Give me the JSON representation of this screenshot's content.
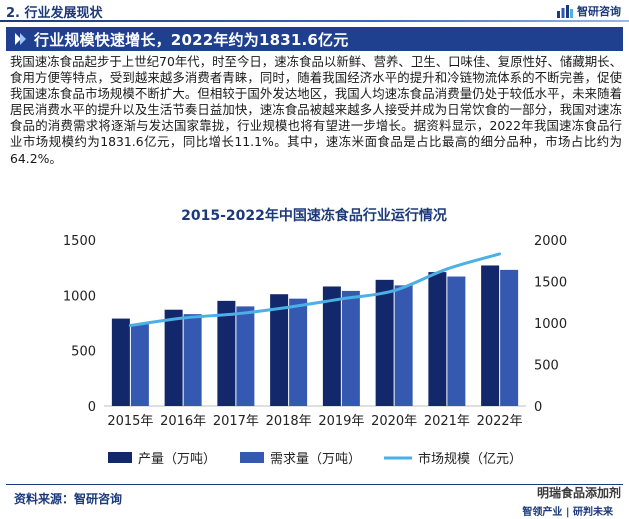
{
  "header": {
    "section": "2. 行业发展现状",
    "brand": "智研咨询"
  },
  "banner": {
    "title": "行业规模快速增长，2022年约为1831.6亿元"
  },
  "paragraph": "我国速冻食品起步于上世纪70年代，时至今日，速冻食品以新鲜、营养、卫生、口味佳、复原性好、储藏期长、食用方便等特点，受到越来越多消费者青睐，同时，随着我国经济水平的提升和冷链物流体系的不断完善，促使我国速冻食品市场规模不断扩大。但相较于国外发达地区，我国人均速冻食品消费量仍处于较低水平，未来随着居民消费水平的提升以及生活节奏日益加快，速冻食品被越来越多人接受并成为日常饮食的一部分，我国对速冻食品的消费需求将逐渐与发达国家靠拢，行业规模也将有望进一步增长。据资料显示，2022年我国速冻食品行业市场规模约为1831.6亿元，同比增长11.1%。其中，速冻米面食品是占比最高的细分品种，市场占比约为64.2%。",
  "chart_data": {
    "type": "bar",
    "title": "2015-2022年中国速冻食品行业运行情况",
    "categories": [
      "2015年",
      "2016年",
      "2017年",
      "2018年",
      "2019年",
      "2020年",
      "2021年",
      "2022年"
    ],
    "series": [
      {
        "name": "产量（万吨）",
        "type": "bar",
        "axis": "left",
        "color": "#12286b",
        "values": [
          790,
          870,
          950,
          1010,
          1080,
          1140,
          1210,
          1270
        ]
      },
      {
        "name": "需求量（万吨）",
        "type": "bar",
        "axis": "left",
        "color": "#3559b0",
        "values": [
          740,
          830,
          900,
          970,
          1040,
          1090,
          1170,
          1230
        ]
      },
      {
        "name": "市场规模（亿元）",
        "type": "line",
        "axis": "right",
        "color": "#4ab0e6",
        "values": [
          970,
          1060,
          1110,
          1190,
          1290,
          1390,
          1650,
          1831.6
        ]
      }
    ],
    "y_left": {
      "min": 0,
      "max": 1500,
      "ticks": [
        0,
        500,
        1000,
        1500
      ]
    },
    "y_right": {
      "min": 0,
      "max": 2000,
      "ticks": [
        0,
        500,
        1000,
        1500,
        2000
      ]
    },
    "legend": "bottom",
    "grid": false
  },
  "footer": {
    "source": "资料来源：智研咨询",
    "watermark": "明瑞食品添加剂",
    "brand_left": "智领产业",
    "brand_right": "研判未来"
  }
}
